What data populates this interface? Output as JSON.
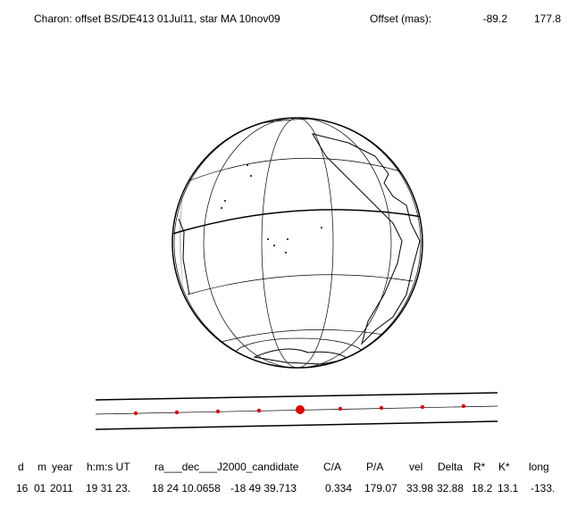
{
  "header": {
    "title": "Charon: offset BS/DE413 01Jul11, star MA 10nov09",
    "offset_label": "Offset (mas):",
    "offset_values": [
      "-89.2",
      "177.8"
    ]
  },
  "table": {
    "headers": [
      "d",
      "m",
      "year",
      "h:m:s UT",
      "ra___dec___J2000_candidate",
      "C/A",
      "P/A",
      "vel",
      "Delta",
      "R*",
      "K*",
      "long"
    ],
    "rows": [
      [
        "16",
        "01",
        "2011",
        "19 31 23.",
        "18 24 10.0658",
        "-18 49 39.713",
        "0.334",
        "179.07",
        "33.98",
        "32.88",
        "18.2",
        "13.1",
        "-133."
      ]
    ]
  }
}
